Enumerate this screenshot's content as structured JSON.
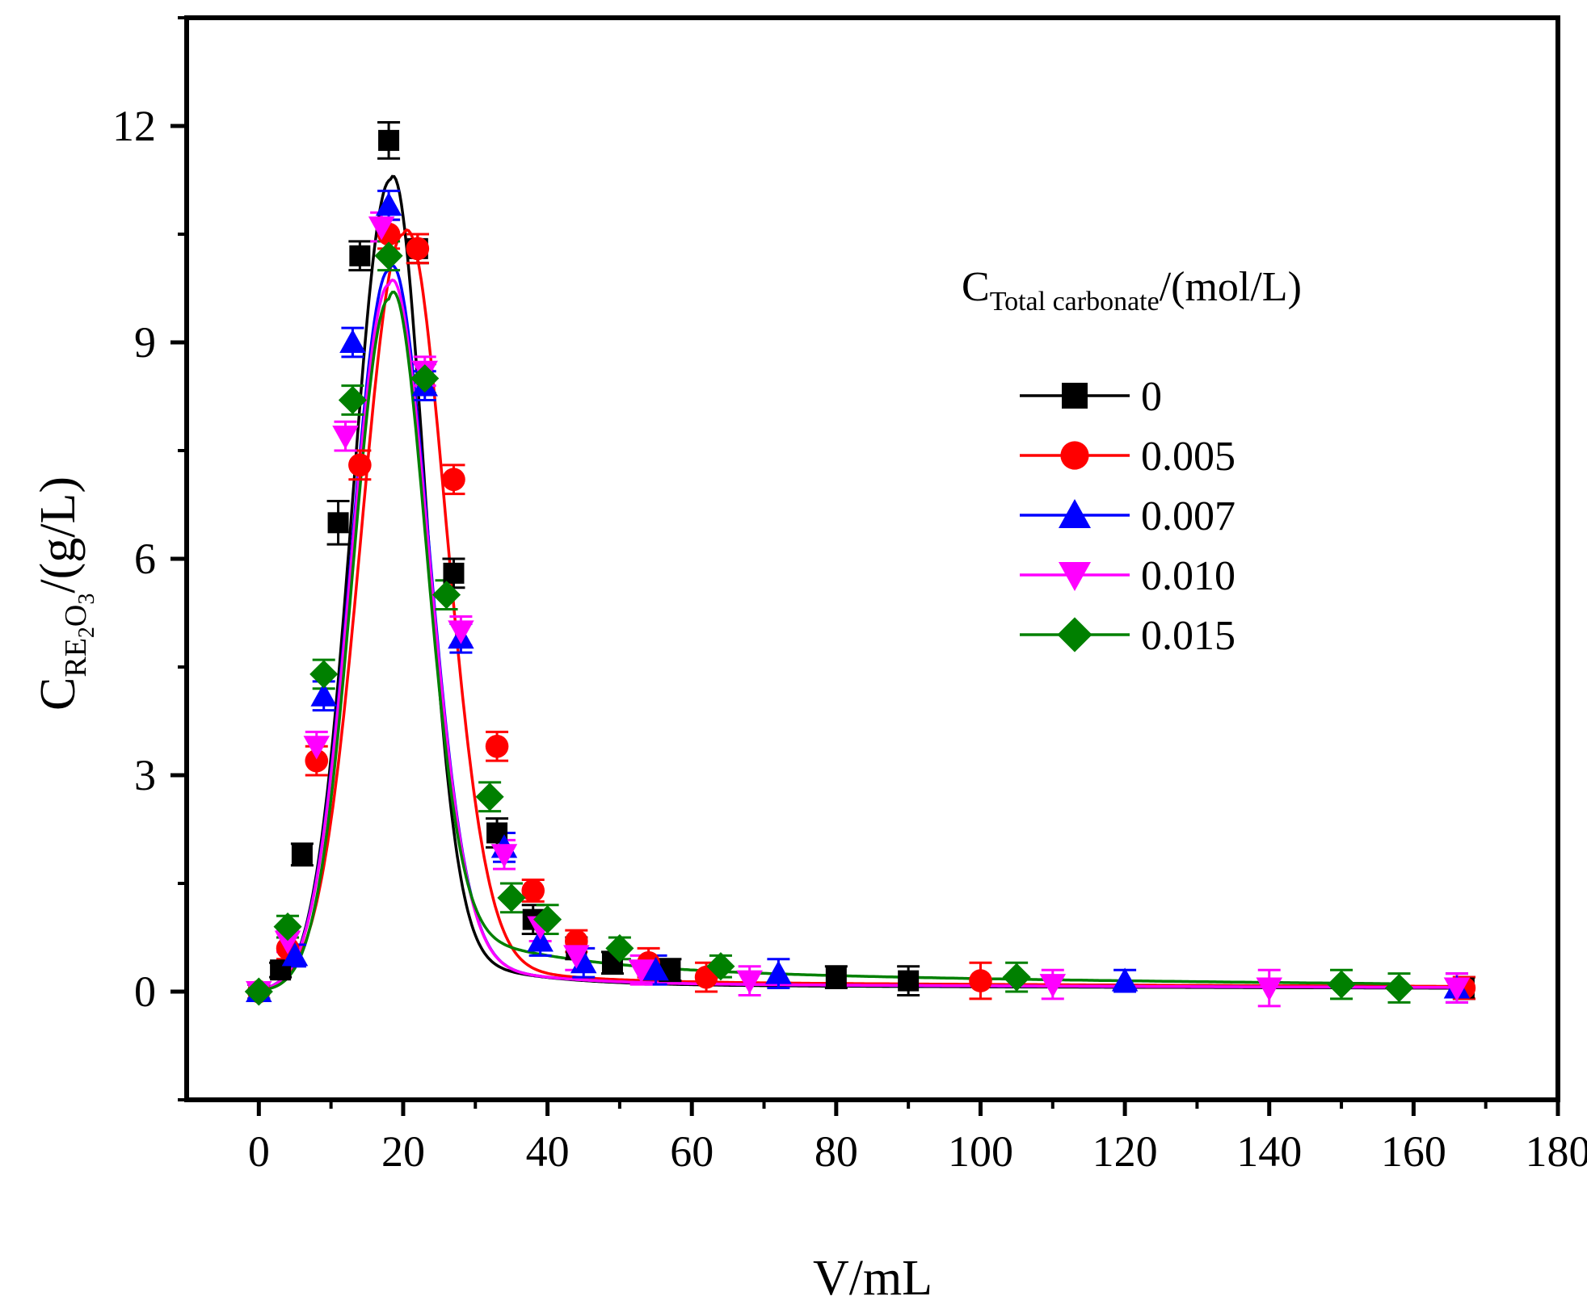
{
  "chart_data": {
    "type": "line",
    "title": "",
    "xlabel": "V/mL",
    "ylabel": {
      "main": "C",
      "sub1": "RE",
      "sub2": "2",
      "mid": "O",
      "sub3": "3",
      "unit": "/(g/L)"
    },
    "xlim": [
      -10,
      180
    ],
    "ylim": [
      -1.5,
      13.5
    ],
    "xticks": [
      0,
      20,
      40,
      60,
      80,
      100,
      120,
      140,
      160,
      180
    ],
    "yticks": [
      0,
      3,
      6,
      9,
      12
    ],
    "legend_title": {
      "main": "C",
      "sub": "Total carbonate",
      "unit": "/(mol/L)"
    },
    "legend_position": "top-right",
    "series": [
      {
        "name": "0",
        "color": "#000000",
        "marker": "square",
        "points": [
          [
            0,
            0.0
          ],
          [
            3,
            0.3
          ],
          [
            6,
            1.9
          ],
          [
            11,
            6.5
          ],
          [
            14,
            10.2
          ],
          [
            18,
            11.8
          ],
          [
            22,
            10.3
          ],
          [
            27,
            5.8
          ],
          [
            33,
            2.2
          ],
          [
            38,
            1.0
          ],
          [
            44,
            0.6
          ],
          [
            49,
            0.4
          ],
          [
            57,
            0.3
          ],
          [
            80,
            0.2
          ],
          [
            90,
            0.15
          ],
          [
            167,
            0.05
          ]
        ],
        "errors": [
          0.1,
          0.1,
          0.15,
          0.3,
          0.2,
          0.25,
          0.2,
          0.2,
          0.2,
          0.2,
          0.15,
          0.15,
          0.15,
          0.15,
          0.2,
          0.15
        ],
        "curve": {
          "amp": 11.25,
          "mu": 18.2,
          "sl": 5.2,
          "sr": 4.6,
          "tailA": 1.0,
          "tailT": 10,
          "base": 0.1,
          "baseT": 200
        }
      },
      {
        "name": "0.005",
        "color": "#ff0000",
        "marker": "circle",
        "points": [
          [
            0,
            0.0
          ],
          [
            4,
            0.6
          ],
          [
            8,
            3.2
          ],
          [
            14,
            7.3
          ],
          [
            18,
            10.5
          ],
          [
            22,
            10.3
          ],
          [
            27,
            7.1
          ],
          [
            33,
            3.4
          ],
          [
            38,
            1.4
          ],
          [
            44,
            0.7
          ],
          [
            54,
            0.4
          ],
          [
            62,
            0.2
          ],
          [
            100,
            0.15
          ],
          [
            167,
            0.05
          ]
        ],
        "errors": [
          0.1,
          0.15,
          0.2,
          0.2,
          0.2,
          0.2,
          0.2,
          0.2,
          0.15,
          0.15,
          0.2,
          0.2,
          0.25,
          0.15
        ],
        "curve": {
          "amp": 10.5,
          "mu": 20.0,
          "sl": 5.8,
          "sr": 5.7,
          "tailA": 0.8,
          "tailT": 10,
          "base": 0.15,
          "baseT": 200
        }
      },
      {
        "name": "0.007",
        "color": "#0000ff",
        "marker": "triangle-up",
        "points": [
          [
            0,
            0.0
          ],
          [
            5,
            0.5
          ],
          [
            9,
            4.1
          ],
          [
            13,
            9.0
          ],
          [
            18,
            10.9
          ],
          [
            23,
            8.4
          ],
          [
            28,
            4.9
          ],
          [
            34,
            2.0
          ],
          [
            39,
            0.7
          ],
          [
            45,
            0.4
          ],
          [
            55,
            0.3
          ],
          [
            72,
            0.25
          ],
          [
            120,
            0.15
          ],
          [
            166,
            0.05
          ]
        ],
        "errors": [
          0.1,
          0.15,
          0.2,
          0.2,
          0.2,
          0.2,
          0.2,
          0.2,
          0.2,
          0.2,
          0.2,
          0.2,
          0.15,
          0.2
        ],
        "curve": {
          "amp": 10.0,
          "mu": 18.0,
          "sl": 5.2,
          "sr": 5.3,
          "tailA": 0.9,
          "tailT": 10,
          "base": 0.12,
          "baseT": 200
        }
      },
      {
        "name": "0.010",
        "color": "#ff00ff",
        "marker": "triangle-down",
        "points": [
          [
            0,
            0.0
          ],
          [
            4,
            0.7
          ],
          [
            8,
            3.4
          ],
          [
            12,
            7.7
          ],
          [
            17,
            10.6
          ],
          [
            23,
            8.6
          ],
          [
            28,
            5.0
          ],
          [
            34,
            1.9
          ],
          [
            39,
            0.9
          ],
          [
            44,
            0.5
          ],
          [
            53,
            0.3
          ],
          [
            68,
            0.15
          ],
          [
            110,
            0.1
          ],
          [
            140,
            0.05
          ],
          [
            166,
            0.05
          ]
        ],
        "errors": [
          0.1,
          0.15,
          0.2,
          0.2,
          0.2,
          0.2,
          0.2,
          0.2,
          0.2,
          0.2,
          0.2,
          0.2,
          0.2,
          0.25,
          0.2
        ],
        "curve": {
          "amp": 9.8,
          "mu": 18.0,
          "sl": 5.2,
          "sr": 5.3,
          "tailA": 0.9,
          "tailT": 10,
          "base": 0.12,
          "baseT": 200
        }
      },
      {
        "name": "0.015",
        "color": "#008000",
        "marker": "diamond",
        "points": [
          [
            0,
            0.0
          ],
          [
            4,
            0.9
          ],
          [
            9,
            4.4
          ],
          [
            13,
            8.2
          ],
          [
            18,
            10.2
          ],
          [
            23,
            8.5
          ],
          [
            26,
            5.5
          ],
          [
            32,
            2.7
          ],
          [
            35,
            1.3
          ],
          [
            40,
            1.0
          ],
          [
            50,
            0.6
          ],
          [
            64,
            0.35
          ],
          [
            105,
            0.2
          ],
          [
            150,
            0.1
          ],
          [
            158,
            0.05
          ]
        ],
        "errors": [
          0.1,
          0.15,
          0.2,
          0.2,
          0.2,
          0.2,
          0.2,
          0.2,
          0.2,
          0.2,
          0.15,
          0.15,
          0.2,
          0.2,
          0.2
        ],
        "curve": {
          "amp": 9.6,
          "mu": 18.0,
          "sl": 5.0,
          "sr": 4.9,
          "tailA": 1.1,
          "tailT": 14,
          "base": 0.35,
          "baseT": 120
        }
      }
    ]
  }
}
